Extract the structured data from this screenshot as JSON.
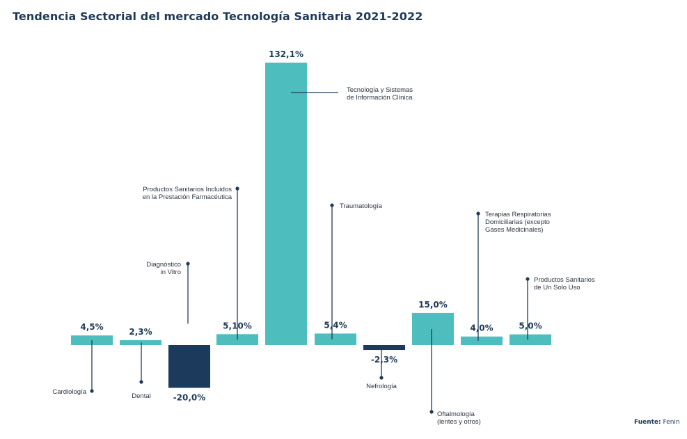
{
  "title": "Tendencia Sectorial del mercado Tecnología Sanitaria 2021-2022",
  "source": {
    "label": "Fuente:",
    "value": "Fenin"
  },
  "colors": {
    "positive": "#4dbdbe",
    "negative": "#1b3a5c",
    "text": "#1e3a57",
    "line": "#1e3a57"
  },
  "chart_data": {
    "type": "bar",
    "title": "Tendencia Sectorial del mercado Tecnología Sanitaria 2021-2022",
    "xlabel": "",
    "ylabel": "",
    "grid": false,
    "legend": "none",
    "ylim": [
      -20,
      132.1
    ],
    "categories": [
      [
        "Cardiología"
      ],
      [
        "Dental"
      ],
      [
        "Diagnóstico",
        "in Vitro"
      ],
      [
        "Productos Sanitarios Incluidos",
        "en la Prestación Farmacéutica"
      ],
      [
        "Tecnología y Sistemas",
        "de Información Clínica"
      ],
      [
        "Traumatología"
      ],
      [
        "Nefrología"
      ],
      [
        "Oftalmología",
        "(lentes y otros)"
      ],
      [
        "Terapias Respiratorias",
        "Domiciliarias (excepto",
        "Gases Medicinales)"
      ],
      [
        "Productos Sanitarios",
        "de Un Solo Uso"
      ]
    ],
    "values": [
      4.5,
      2.3,
      -20.0,
      5.1,
      132.1,
      5.4,
      -2.3,
      15.0,
      4.0,
      5.0
    ],
    "value_labels": [
      "4,5%",
      "2,3%",
      "-20,0%",
      "5,10%",
      "132,1%",
      "5,4%",
      "-2,3%",
      "15,0%",
      "4,0%",
      "5,0%"
    ]
  }
}
